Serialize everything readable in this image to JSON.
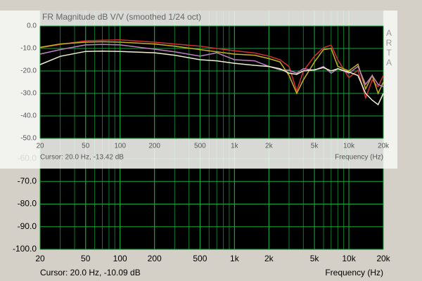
{
  "chart_data": [
    {
      "type": "line",
      "cursor": "Cursor: 20.0 Hz, -10.09 dB",
      "x_label": "Frequency (Hz)",
      "xscale": "log",
      "xlim": [
        20,
        20000
      ],
      "xticks": [
        20,
        50,
        100,
        200,
        500,
        {
          "value": 1000,
          "label": "1k"
        },
        {
          "value": 2000,
          "label": "2k"
        },
        {
          "value": 5000,
          "label": "5k"
        },
        {
          "value": 10000,
          "label": "10k"
        },
        {
          "value": 20000,
          "label": "20k"
        }
      ],
      "ylim": [
        -100,
        -60
      ],
      "yticks": [
        {
          "value": -60,
          "label": "-60.0"
        },
        {
          "value": -70,
          "label": "-70.0"
        },
        {
          "value": -80,
          "label": "-80.0"
        },
        {
          "value": -90,
          "label": "-90.0"
        },
        {
          "value": -100,
          "label": "-100.0"
        }
      ],
      "grid": true
    },
    {
      "type": "line",
      "title": "FR Magnitude dB V/V (smoothed 1/24 oct)",
      "annotation": "ARTA",
      "cursor": "Cursor: 20.0 Hz, -13.42 dB",
      "x_label": "Frequency (Hz)",
      "xscale": "log",
      "xlim": [
        20,
        20000
      ],
      "xticks": [
        20,
        50,
        100,
        200,
        500,
        {
          "value": 1000,
          "label": "1k"
        },
        {
          "value": 2000,
          "label": "2k"
        },
        {
          "value": 5000,
          "label": "5k"
        },
        {
          "value": 10000,
          "label": "10k"
        },
        {
          "value": 20000,
          "label": "20k"
        }
      ],
      "ylim": [
        -50,
        0
      ],
      "yticks": [
        {
          "value": 0,
          "label": "0.0"
        },
        {
          "value": -10,
          "label": "-10.0"
        },
        {
          "value": -20,
          "label": "-20.0"
        },
        {
          "value": -30,
          "label": "-30.0"
        },
        {
          "value": -40,
          "label": "-40.0"
        },
        {
          "value": -50,
          "label": "-50.0"
        }
      ],
      "grid": true,
      "x": [
        20,
        30,
        50,
        70,
        100,
        200,
        300,
        500,
        700,
        1000,
        1500,
        2000,
        2500,
        3000,
        3500,
        4000,
        5000,
        6000,
        7000,
        8000,
        10000,
        12000,
        14000,
        16000,
        18000,
        20000
      ],
      "series": [
        {
          "color": "#d03030",
          "values": [
            -9.7,
            -8.2,
            -6.6,
            -6.3,
            -6.2,
            -7.2,
            -8.0,
            -9.0,
            -10.0,
            -11.0,
            -12.0,
            -13.4,
            -15.0,
            -18.0,
            -29.0,
            -20.0,
            -13.4,
            -9.7,
            -8.5,
            -15.0,
            -23.0,
            -19.7,
            -32.0,
            -24.0,
            -27.0,
            -22.0
          ]
        },
        {
          "color": "#c8b020",
          "values": [
            -9.5,
            -8.0,
            -7.2,
            -7.0,
            -7.2,
            -8.0,
            -9.0,
            -10.5,
            -11.5,
            -12.5,
            -13.0,
            -14.5,
            -16.0,
            -22.0,
            -30.0,
            -24.0,
            -16.0,
            -10.5,
            -10.0,
            -18.0,
            -20.0,
            -17.0,
            -28.0,
            -22.0,
            -30.0,
            -25.0
          ]
        },
        {
          "color": "#c080c0",
          "values": [
            -12.5,
            -10.5,
            -8.4,
            -8.2,
            -8.4,
            -10.3,
            -11.5,
            -13.4,
            -11.9,
            -15.0,
            -15.5,
            -18.0,
            -19.5,
            -19.7,
            -21.0,
            -19.0,
            -19.7,
            -18.0,
            -21.0,
            -19.0,
            -21.0,
            -18.0,
            -26.0,
            -22.0,
            -26.0,
            -27.0
          ]
        },
        {
          "color": "#f0f0d0",
          "values": [
            -17.2,
            -13.5,
            -11.3,
            -11.2,
            -11.3,
            -11.9,
            -13.0,
            -15.0,
            -15.5,
            -16.6,
            -17.5,
            -18.0,
            -19.0,
            -21.0,
            -21.5,
            -20.0,
            -19.5,
            -18.5,
            -20.0,
            -19.0,
            -20.5,
            -22.0,
            -30.0,
            -33.0,
            -35.0,
            -30.0
          ]
        }
      ]
    }
  ]
}
